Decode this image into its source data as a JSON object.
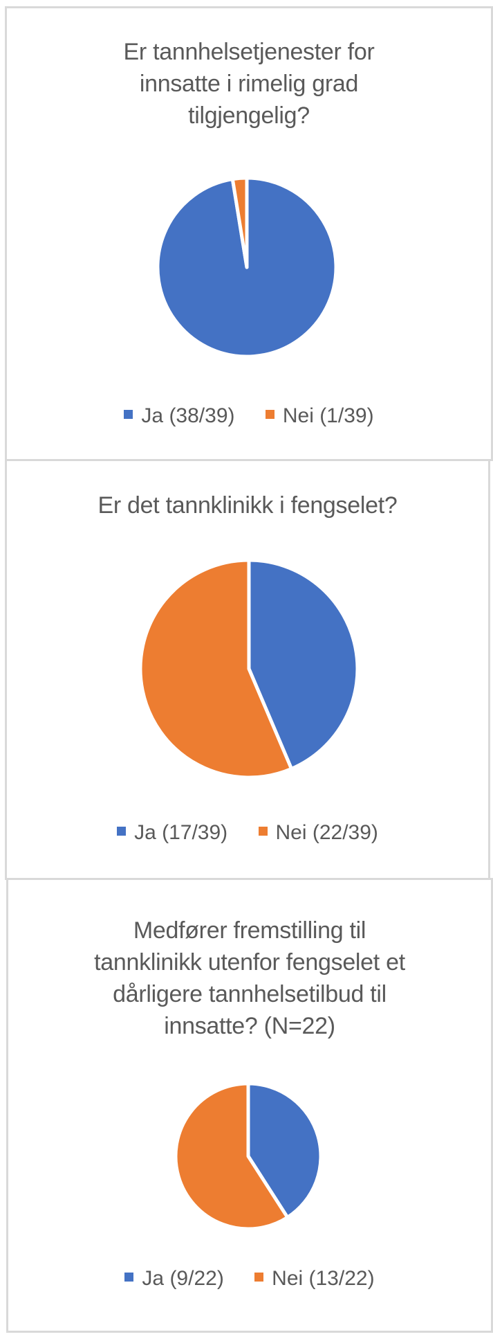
{
  "colors": {
    "ja": "#4472C4",
    "nei": "#ED7D31",
    "title_text": "#595959",
    "border": "#D9D9D9"
  },
  "charts": [
    {
      "title_lines": [
        "Er tannhelsetjenester for",
        "innsatte i rimelig grad",
        "tilgjengelig?"
      ],
      "legend": [
        "Ja (38/39)",
        "Nei (1/39)"
      ]
    },
    {
      "title_lines": [
        "Er det tannklinikk i fengselet?"
      ],
      "legend": [
        "Ja (17/39)",
        "Nei (22/39)"
      ]
    },
    {
      "title_lines": [
        "Medfører fremstilling til",
        "tannklinikk utenfor fengselet et",
        "dårligere tannhelsetilbud til",
        "innsatte? (N=22)"
      ],
      "legend": [
        "Ja (9/22)",
        "Nei (13/22)"
      ]
    }
  ],
  "chart_data": [
    {
      "type": "pie",
      "title": "Er tannhelsetjenester for innsatte i rimelig grad tilgjengelig?",
      "categories": [
        "Ja (38/39)",
        "Nei (1/39)"
      ],
      "values": [
        38,
        1
      ],
      "colors": [
        "#4472C4",
        "#ED7D31"
      ],
      "legend_position": "bottom"
    },
    {
      "type": "pie",
      "title": "Er det tannklinikk i fengselet?",
      "categories": [
        "Ja (17/39)",
        "Nei (22/39)"
      ],
      "values": [
        17,
        22
      ],
      "colors": [
        "#4472C4",
        "#ED7D31"
      ],
      "legend_position": "bottom"
    },
    {
      "type": "pie",
      "title": "Medfører fremstilling til tannklinikk utenfor fengselet et dårligere tannhelsetilbud til innsatte? (N=22)",
      "categories": [
        "Ja (9/22)",
        "Nei (13/22)"
      ],
      "values": [
        9,
        13
      ],
      "colors": [
        "#4472C4",
        "#ED7D31"
      ],
      "legend_position": "bottom"
    }
  ]
}
